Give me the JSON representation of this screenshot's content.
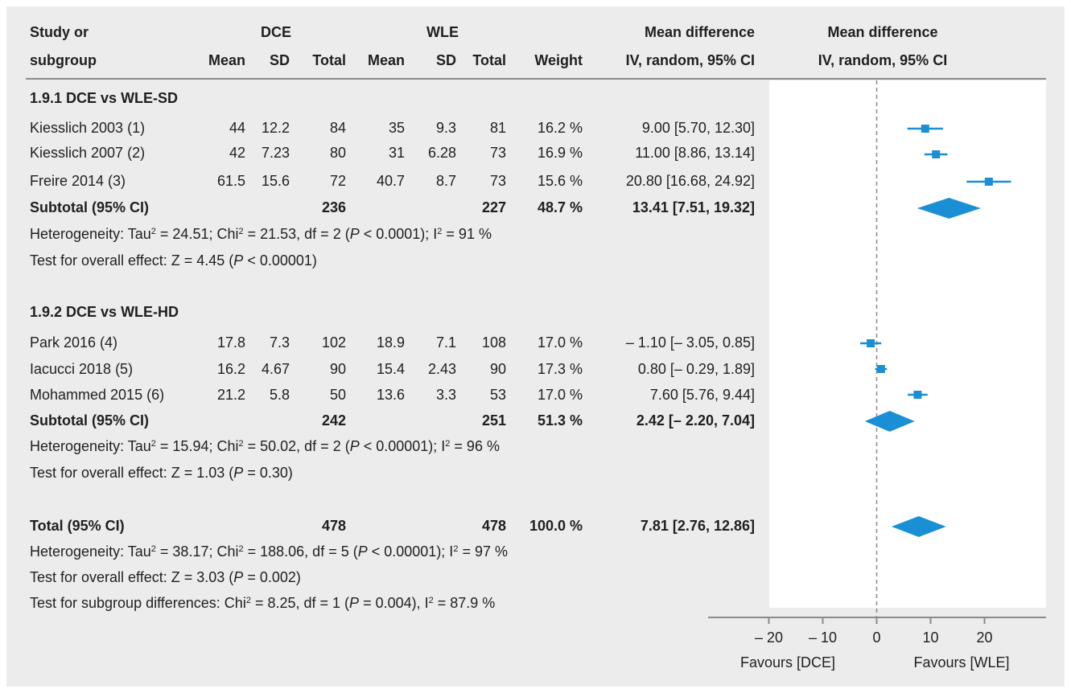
{
  "colors": {
    "panel": "#ececec",
    "plot_bg": "#ffffff",
    "marker": "#1a8fd6",
    "diamond": "#1a8fd6",
    "line": "#8a8a8a",
    "text": "#1f1f1f"
  },
  "header": {
    "study_or": "Study or",
    "subgroup": "subgroup",
    "dce": "DCE",
    "wle": "WLE",
    "mean": "Mean",
    "sd": "SD",
    "total": "Total",
    "weight": "Weight",
    "md1": "Mean difference",
    "md2": "IV, random, 95% CI",
    "md_plot1": "Mean difference",
    "md_plot2": "IV, random, 95% CI"
  },
  "subgroups": [
    {
      "title": "1.9.1 DCE vs WLE-SD",
      "studies": [
        {
          "name": "Kiesslich 2003 (1)",
          "dce_mean": "44",
          "dce_sd": "12.2",
          "dce_total": "84",
          "wle_mean": "35",
          "wle_sd": "9.3",
          "wle_total": "81",
          "weight": "16.2 %",
          "ci_text": "9.00 [5.70, 12.30]",
          "md": 9.0,
          "lo": 5.7,
          "hi": 12.3
        },
        {
          "name": "Kiesslich 2007 (2)",
          "dce_mean": "42",
          "dce_sd": "7.23",
          "dce_total": "80",
          "wle_mean": "31",
          "wle_sd": "6.28",
          "wle_total": "73",
          "weight": "16.9 %",
          "ci_text": "11.00 [8.86, 13.14]",
          "md": 11.0,
          "lo": 8.86,
          "hi": 13.14
        },
        {
          "name": "Freire 2014 (3)",
          "dce_mean": "61.5",
          "dce_sd": "15.6",
          "dce_total": "72",
          "wle_mean": "40.7",
          "wle_sd": "8.7",
          "wle_total": "73",
          "weight": "15.6 %",
          "ci_text": "20.80 [16.68, 24.92]",
          "md": 20.8,
          "lo": 16.68,
          "hi": 24.92
        }
      ],
      "subtotal": {
        "label": "Subtotal (95% CI)",
        "dce_total": "236",
        "wle_total": "227",
        "weight": "48.7 %",
        "ci_text": "13.41 [7.51, 19.32]",
        "md": 13.41,
        "lo": 7.51,
        "hi": 19.32
      },
      "het": {
        "p1": "Heterogeneity: Tau",
        "p2": " = 24.51; Chi",
        "p3": " = 21.53, df = 2 (",
        "p4": "P",
        "p5": " < 0.0001); I",
        "p6": " = 91 %"
      },
      "test": {
        "p1": "Test for overall effect: Z = 4.45 (",
        "p2": "P",
        "p3": " < 0.00001)"
      }
    },
    {
      "title": "1.9.2 DCE vs WLE-HD",
      "studies": [
        {
          "name": "Park 2016 (4)",
          "dce_mean": "17.8",
          "dce_sd": "7.3",
          "dce_total": "102",
          "wle_mean": "18.9",
          "wle_sd": "7.1",
          "wle_total": "108",
          "weight": "17.0 %",
          "ci_text": "– 1.10 [– 3.05, 0.85]",
          "md": -1.1,
          "lo": -3.05,
          "hi": 0.85
        },
        {
          "name": "Iacucci 2018 (5)",
          "dce_mean": "16.2",
          "dce_sd": "4.67",
          "dce_total": "90",
          "wle_mean": "15.4",
          "wle_sd": "2.43",
          "wle_total": "90",
          "weight": "17.3 %",
          "ci_text": "0.80 [– 0.29, 1.89]",
          "md": 0.8,
          "lo": -0.29,
          "hi": 1.89
        },
        {
          "name": "Mohammed 2015 (6)",
          "dce_mean": "21.2",
          "dce_sd": "5.8",
          "dce_total": "50",
          "wle_mean": "13.6",
          "wle_sd": "3.3",
          "wle_total": "53",
          "weight": "17.0 %",
          "ci_text": "7.60 [5.76, 9.44]",
          "md": 7.6,
          "lo": 5.76,
          "hi": 9.44
        }
      ],
      "subtotal": {
        "label": "Subtotal (95% CI)",
        "dce_total": "242",
        "wle_total": "251",
        "weight": "51.3 %",
        "ci_text": "2.42 [– 2.20, 7.04]",
        "md": 2.42,
        "lo": -2.2,
        "hi": 7.04
      },
      "het": {
        "p1": "Heterogeneity: Tau",
        "p2": " = 15.94; Chi",
        "p3": " = 50.02, df = 2 (",
        "p4": "P",
        "p5": " < 0.00001); I",
        "p6": " = 96 %"
      },
      "test": {
        "p1": "Test for overall effect: Z = 1.03 (",
        "p2": "P",
        "p3": " = 0.30)"
      }
    }
  ],
  "total": {
    "label": "Total (95% CI)",
    "dce_total": "478",
    "wle_total": "478",
    "weight": "100.0 %",
    "ci_text": "7.81 [2.76, 12.86]",
    "md": 7.81,
    "lo": 2.76,
    "hi": 12.86
  },
  "total_het": {
    "p1": "Heterogeneity: Tau",
    "p2": " = 38.17; Chi",
    "p3": " = 188.06, df = 5 (",
    "p4": "P",
    "p5": " < 0.00001); I",
    "p6": " = 97 %"
  },
  "total_test": {
    "p1": "Test for overall effect: Z = 3.03 (",
    "p2": "P",
    "p3": " = 0.002)"
  },
  "subgroup_test": {
    "p1": "Test for subgroup differences: Chi",
    "p2": " = 8.25, df = 1 (",
    "p3": "P",
    "p4": " = 0.004), I",
    "p5": " = 87.9 %"
  },
  "sup2": "2",
  "axis": {
    "ticks": [
      -20,
      -10,
      0,
      10,
      20
    ],
    "tick_labels": [
      "– 20",
      "– 10",
      "0",
      "10",
      "20"
    ],
    "favours_left": "Favours [DCE]",
    "favours_right": "Favours [WLE]"
  },
  "chart_data": {
    "type": "scatter",
    "title": "",
    "xlabel": "",
    "ylabel": "",
    "xlim": [
      -20,
      20
    ],
    "categories": [
      "Kiesslich 2003 (1)",
      "Kiesslich 2007 (2)",
      "Freire 2014 (3)",
      "Subtotal (95% CI)",
      "Park 2016 (4)",
      "Iacucci 2018 (5)",
      "Mohammed 2015 (6)",
      "Subtotal (95% CI)",
      "Total (95% CI)"
    ],
    "series": [
      {
        "name": "",
        "values": [
          9.0,
          11.0,
          20.8,
          13.41,
          -1.1,
          0.8,
          7.6,
          2.42,
          7.81
        ],
        "ci_low": [
          5.7,
          8.86,
          16.68,
          7.51,
          -3.05,
          -0.29,
          5.76,
          -2.2,
          2.76
        ],
        "ci_high": [
          12.3,
          13.14,
          24.92,
          19.32,
          0.85,
          1.89,
          9.44,
          7.04,
          12.86
        ]
      }
    ],
    "x_tick_labels": [
      "– 20",
      "– 10",
      "0",
      "10",
      "20"
    ]
  }
}
